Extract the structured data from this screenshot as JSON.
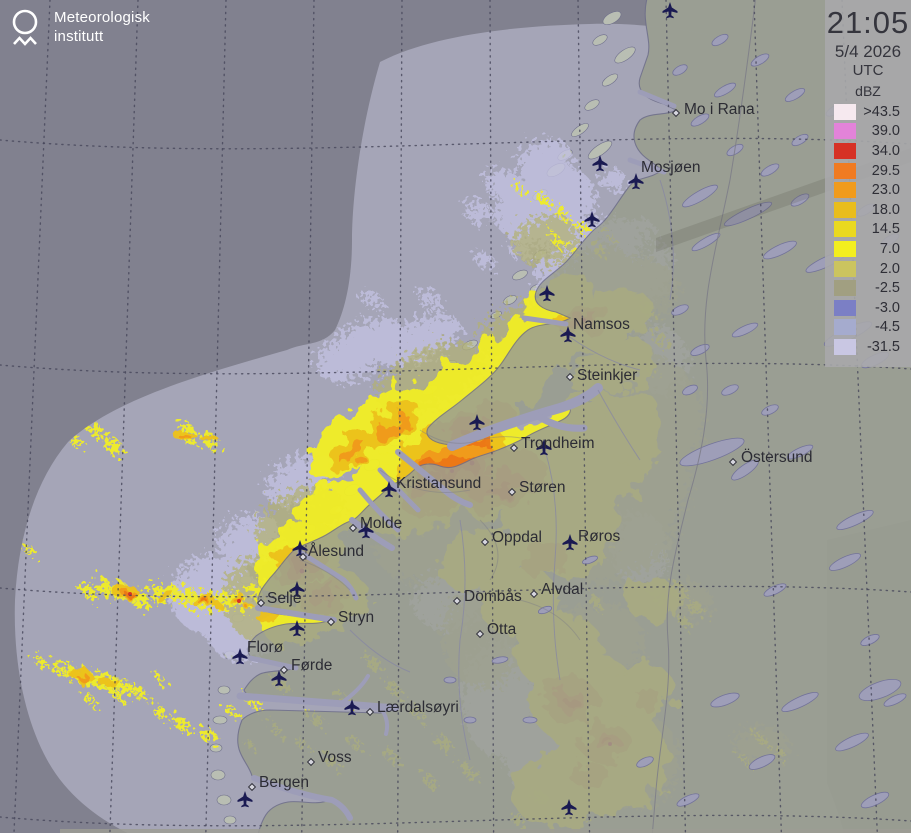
{
  "branding": {
    "line1": "Meteorologisk",
    "line2": "institutt"
  },
  "header": {
    "time": "21:05",
    "date": "5/4 2026",
    "timezone": "UTC"
  },
  "legend": {
    "unit": "dBZ",
    "rows": [
      {
        "label": ">43.5",
        "color": "#f6e9ef"
      },
      {
        "label": "39.0",
        "color": "#e383d9"
      },
      {
        "label": "34.0",
        "color": "#d63125"
      },
      {
        "label": "29.5",
        "color": "#f07b22"
      },
      {
        "label": "23.0",
        "color": "#f09b1d"
      },
      {
        "label": "18.0",
        "color": "#e9bd1d"
      },
      {
        "label": "14.5",
        "color": "#ead91f"
      },
      {
        "label": "7.0",
        "color": "#f3ef1e"
      },
      {
        "label": "2.0",
        "color": "#cbc45f"
      },
      {
        "label": "-2.5",
        "color": "#a19f81"
      },
      {
        "label": "-3.0",
        "color": "#7b7fc5"
      },
      {
        "label": "-4.5",
        "color": "#a5abce"
      },
      {
        "label": "-31.5",
        "color": "#c9c7e3"
      }
    ]
  },
  "map": {
    "towns": [
      "Mo i Rana",
      "Mosjøen",
      "Namsos",
      "Steinkjer",
      "Trondheim",
      "Støren",
      "Kristiansund",
      "Molde",
      "Ålesund",
      "Oppdal",
      "Røros",
      "Dombås",
      "Alvdal",
      "Otta",
      "Selje",
      "Stryn",
      "Florø",
      "Førde",
      "Lærdalsøyri",
      "Voss",
      "Bergen",
      "Östersund"
    ]
  }
}
